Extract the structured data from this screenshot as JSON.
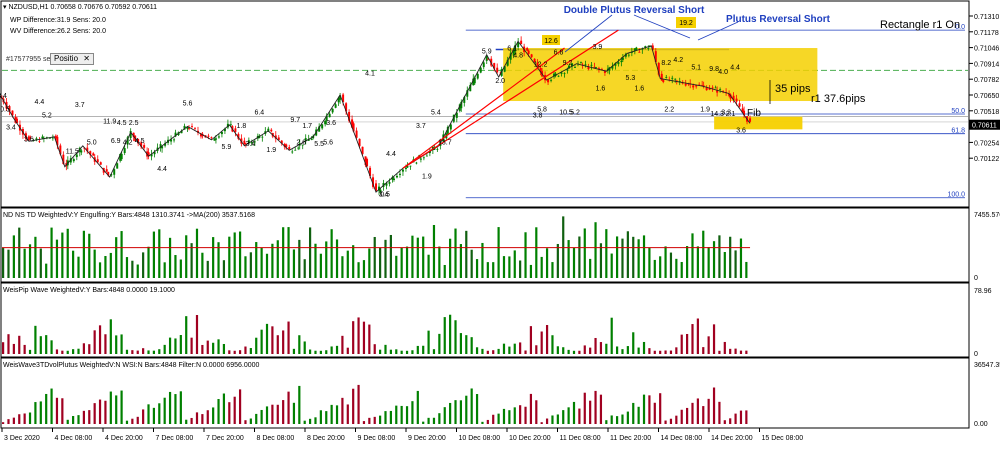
{
  "header": {
    "symbol": "NZDUSD,H1",
    "prices": "0.70658 0.70676 0.70592 0.70611",
    "wp_diff": "WP Difference:31.9 Sens: 20.0",
    "wv_diff": "WV Difference:26.2 Sens: 20.0",
    "position_id": "#17577955 sell",
    "position_btn": "Positio"
  },
  "colors": {
    "bull": "#008000",
    "bear": "#ff0000",
    "wave_bear": "#a00020",
    "fib": "#1f3fbf",
    "rect": "#f5d000",
    "ma": "#d00000",
    "green_dash": "#4caf50"
  },
  "chart_data": [
    {
      "type": "candlestick",
      "title": "NZDUSD,H1",
      "ylim": [
        0.7008,
        0.7142
      ],
      "y_ticks": [
        "0.71310",
        "0.71178",
        "0.71046",
        "0.70914",
        "0.70782",
        "0.70650",
        "0.70518",
        "0.70386",
        "0.70254",
        "0.70122"
      ],
      "current_price": "0.70611",
      "x_ticks": [
        "3 Dec 2020",
        "4 Dec 08:00",
        "4 Dec 20:00",
        "7 Dec 08:00",
        "7 Dec 20:00",
        "8 Dec 08:00",
        "8 Dec 20:00",
        "9 Dec 08:00",
        "9 Dec 20:00",
        "10 Dec 08:00",
        "10 Dec 20:00",
        "11 Dec 08:00",
        "11 Dec 20:00",
        "14 Dec 08:00",
        "14 Dec 20:00",
        "15 Dec 08:00"
      ],
      "fib_levels": [
        {
          "label": "0.0",
          "price": 0.71245
        },
        {
          "label": "50.0",
          "price": 0.70683
        },
        {
          "label": "61.8",
          "price": 0.70551
        },
        {
          "label": "100.0",
          "price": 0.70122
        }
      ],
      "zigzag": [
        [
          0,
          0.7079
        ],
        [
          8,
          0.7065
        ],
        [
          18,
          0.705
        ],
        [
          35,
          0.7053
        ],
        [
          42,
          0.7033
        ],
        [
          54,
          0.7047
        ],
        [
          72,
          0.7026
        ],
        [
          86,
          0.7056
        ],
        [
          98,
          0.704
        ],
        [
          124,
          0.706
        ],
        [
          140,
          0.7051
        ],
        [
          152,
          0.7061
        ],
        [
          162,
          0.7047
        ],
        [
          178,
          0.7057
        ],
        [
          192,
          0.7044
        ],
        [
          208,
          0.7053
        ],
        [
          226,
          0.7081
        ],
        [
          250,
          0.7016
        ],
        [
          268,
          0.7032
        ],
        [
          292,
          0.7047
        ],
        [
          324,
          0.7108
        ],
        [
          332,
          0.7093
        ],
        [
          345,
          0.7117
        ],
        [
          364,
          0.7091
        ],
        [
          384,
          0.7102
        ],
        [
          404,
          0.7097
        ],
        [
          418,
          0.7109
        ],
        [
          434,
          0.7114
        ],
        [
          440,
          0.7092
        ],
        [
          468,
          0.7087
        ],
        [
          486,
          0.7082
        ],
        [
          500,
          0.7062
        ]
      ],
      "wave_labels": [
        {
          "i": 0,
          "p": 0.7079,
          "t": "3.4"
        },
        {
          "i": 2,
          "p": 0.707,
          "t": "0.5"
        },
        {
          "i": 6,
          "p": 0.7058,
          "t": "3.4"
        },
        {
          "i": 25,
          "p": 0.7075,
          "t": "4.4"
        },
        {
          "i": 30,
          "p": 0.7066,
          "t": "5.2"
        },
        {
          "i": 18,
          "p": 0.705,
          "t": "3.6"
        },
        {
          "i": 52,
          "p": 0.7073,
          "t": "3.7"
        },
        {
          "i": 47,
          "p": 0.7042,
          "t": "11.5"
        },
        {
          "i": 60,
          "p": 0.7048,
          "t": "5.0"
        },
        {
          "i": 72,
          "p": 0.7062,
          "t": "11.9"
        },
        {
          "i": 80,
          "p": 0.7061,
          "t": "4.5"
        },
        {
          "i": 88,
          "p": 0.7061,
          "t": "2.5"
        },
        {
          "i": 76,
          "p": 0.7049,
          "t": "6.9"
        },
        {
          "i": 84,
          "p": 0.7048,
          "t": "4.2"
        },
        {
          "i": 92,
          "p": 0.7049,
          "t": "4.5"
        },
        {
          "i": 107,
          "p": 0.703,
          "t": "4.4"
        },
        {
          "i": 124,
          "p": 0.7074,
          "t": "5.6"
        },
        {
          "i": 150,
          "p": 0.7045,
          "t": "5.9"
        },
        {
          "i": 160,
          "p": 0.7059,
          "t": "1.8"
        },
        {
          "i": 166,
          "p": 0.7047,
          "t": "3.4"
        },
        {
          "i": 172,
          "p": 0.7068,
          "t": "6.4"
        },
        {
          "i": 180,
          "p": 0.7043,
          "t": "1.9"
        },
        {
          "i": 196,
          "p": 0.7063,
          "t": "9.7"
        },
        {
          "i": 204,
          "p": 0.7059,
          "t": "1.7"
        },
        {
          "i": 200,
          "p": 0.7048,
          "t": "2.6"
        },
        {
          "i": 212,
          "p": 0.7047,
          "t": "5.5"
        },
        {
          "i": 218,
          "p": 0.7048,
          "t": "5.6"
        },
        {
          "i": 220,
          "p": 0.7061,
          "t": "3.6"
        },
        {
          "i": 246,
          "p": 0.7094,
          "t": "4.1"
        },
        {
          "i": 255,
          "p": 0.7013,
          "t": "3.4"
        },
        {
          "i": 260,
          "p": 0.704,
          "t": "4.4"
        },
        {
          "i": 256,
          "p": 0.7013,
          "t": "0.5"
        },
        {
          "i": 284,
          "p": 0.7025,
          "t": "1.9"
        },
        {
          "i": 280,
          "p": 0.7059,
          "t": "3.7"
        },
        {
          "i": 296,
          "p": 0.7048,
          "t": "13.7"
        },
        {
          "i": 290,
          "p": 0.7068,
          "t": "5.4"
        },
        {
          "i": 324,
          "p": 0.7109,
          "t": "5.9"
        },
        {
          "i": 333,
          "p": 0.7089,
          "t": "2.0"
        },
        {
          "i": 341,
          "p": 0.7111,
          "t": "6.1"
        },
        {
          "i": 345,
          "p": 0.7106,
          "t": "4.8"
        },
        {
          "i": 361,
          "p": 0.707,
          "t": "5.8"
        },
        {
          "i": 358,
          "p": 0.7066,
          "t": "3.8"
        },
        {
          "i": 360,
          "p": 0.71,
          "t": "12.2"
        },
        {
          "i": 372,
          "p": 0.7108,
          "t": "6.8"
        },
        {
          "i": 378,
          "p": 0.7101,
          "t": "9.2"
        },
        {
          "i": 377,
          "p": 0.7068,
          "t": "10.5"
        },
        {
          "i": 383,
          "p": 0.7068,
          "t": "5.2"
        },
        {
          "i": 398,
          "p": 0.7112,
          "t": "3.9"
        },
        {
          "i": 400,
          "p": 0.7084,
          "t": "1.6"
        },
        {
          "i": 420,
          "p": 0.7091,
          "t": "5.3"
        },
        {
          "i": 426,
          "p": 0.7084,
          "t": "1.6"
        },
        {
          "i": 444,
          "p": 0.7101,
          "t": "8.2"
        },
        {
          "i": 452,
          "p": 0.7103,
          "t": "4.2"
        },
        {
          "i": 446,
          "p": 0.707,
          "t": "2.2"
        },
        {
          "i": 470,
          "p": 0.707,
          "t": "1.9"
        },
        {
          "i": 464,
          "p": 0.7098,
          "t": "5.1"
        },
        {
          "i": 476,
          "p": 0.7097,
          "t": "9.8"
        },
        {
          "i": 482,
          "p": 0.7095,
          "t": "4.0"
        },
        {
          "i": 478,
          "p": 0.7067,
          "t": "14.3"
        },
        {
          "i": 484,
          "p": 0.7068,
          "t": "3.3"
        },
        {
          "i": 487,
          "p": 0.7067,
          "t": "2.1"
        },
        {
          "i": 490,
          "p": 0.7098,
          "t": "4.4"
        },
        {
          "i": 494,
          "p": 0.7056,
          "t": "3.6"
        }
      ],
      "annotations": [
        {
          "t": "Double Plutus Reversal Short",
          "color": "#1f3fbf"
        },
        {
          "t": "Plutus Reversal Short",
          "color": "#1f3fbf"
        },
        {
          "t": "Rectangle r1 On",
          "color": "#000000"
        },
        {
          "t": "35 pips",
          "color": "#000000"
        },
        {
          "t": "r1 37.6pips",
          "color": "#000000"
        },
        {
          "t": "Fib",
          "color": "#000000"
        },
        {
          "t": "12.6",
          "color": "#000000"
        },
        {
          "t": "19.2",
          "color": "#000000"
        }
      ],
      "grid": false
    },
    {
      "type": "bar",
      "title": "ND NS TD WeightedV:Y Engulfing:Y Bars:4848 1310.3741 ->MA(200) 3537.5168",
      "ylim": [
        0,
        7455.5767
      ],
      "y_ticks": [
        "7455.5767",
        "0"
      ],
      "ma_value": 3537.5168,
      "bars": 4848
    },
    {
      "type": "bar",
      "title": "WeisPip Wave WeightedV:Y Bars:4848 0.0000 19.1000",
      "ylim": [
        0,
        78.96
      ],
      "y_ticks": [
        "78.96",
        "0"
      ],
      "bars": 4848
    },
    {
      "type": "bar",
      "title": "WeisWave3TDvolPlutus WeightedV:N WSI:N Bars:4848 Filter:N 0.0000 6956.0000",
      "ylim": [
        0,
        36547.35
      ],
      "y_ticks": [
        "36547.35",
        "0.00"
      ],
      "bars": 4848
    }
  ]
}
